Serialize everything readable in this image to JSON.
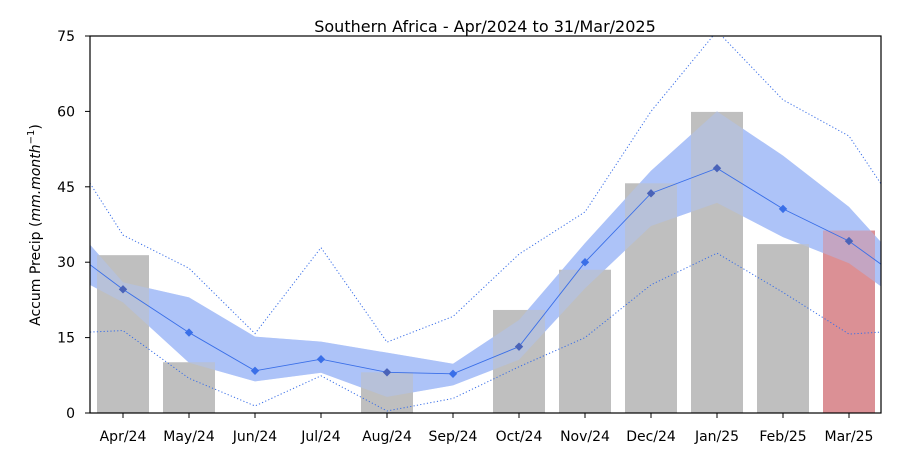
{
  "chart_data": {
    "type": "bar",
    "title": "Southern Africa - Apr/2024 to 31/Mar/2025",
    "ylabel_prefix": "Accum Precip (",
    "ylabel_unit": "mm.month",
    "ylabel_exp": "−1",
    "ylabel_suffix": ")",
    "ylim": [
      0,
      75
    ],
    "yticks": [
      0,
      15,
      30,
      45,
      60,
      75
    ],
    "categories": [
      "Apr/24",
      "May/24",
      "Jun/24",
      "Jul/24",
      "Aug/24",
      "Sep/24",
      "Oct/24",
      "Nov/24",
      "Dec/24",
      "Jan/25",
      "Feb/25",
      "Mar/25"
    ],
    "observed": [
      31.4,
      10.1,
      null,
      null,
      8.1,
      null,
      20.5,
      28.5,
      45.7,
      59.9,
      33.6,
      36.3
    ],
    "highlight_index": 11,
    "climatology_mean": [
      24.6,
      16.0,
      8.4,
      10.7,
      8.1,
      7.8,
      13.2,
      30.0,
      43.7,
      48.7,
      40.6,
      34.2
    ],
    "band_upper": [
      26.0,
      23.0,
      15.2,
      14.2,
      12.0,
      9.8,
      18.5,
      33.8,
      48.2,
      60.0,
      51.2,
      41.0
    ],
    "band_lower": [
      22.0,
      10.0,
      6.3,
      8.0,
      3.2,
      5.5,
      10.6,
      24.8,
      37.2,
      41.8,
      35.0,
      29.8
    ],
    "max_line": [
      35.4,
      28.8,
      15.8,
      32.9,
      14.1,
      19.2,
      31.6,
      40.0,
      60.0,
      76.0,
      62.3,
      55.1
    ],
    "min_line": [
      16.4,
      6.9,
      1.4,
      7.4,
      0.4,
      2.9,
      9.2,
      15.0,
      25.5,
      31.8,
      24.0,
      15.7
    ],
    "edge_start": {
      "mean": 29.5,
      "upper": 33.5,
      "lower": 25.5,
      "max": 45.7,
      "min": 16.1
    },
    "edge_end": {
      "mean": 29.6,
      "upper": 34.0,
      "lower": 25.2,
      "max": 45.6,
      "min": 16.1
    },
    "colors": {
      "bar": "#bfbfbf",
      "bar_highlight": "#d98a8f",
      "band": "#aec3f8",
      "band_overlap": "#8fa3cf",
      "line": "#3a6fe8",
      "marker_dark": "#4a63b8",
      "dotted": "#3a6fe8"
    }
  }
}
